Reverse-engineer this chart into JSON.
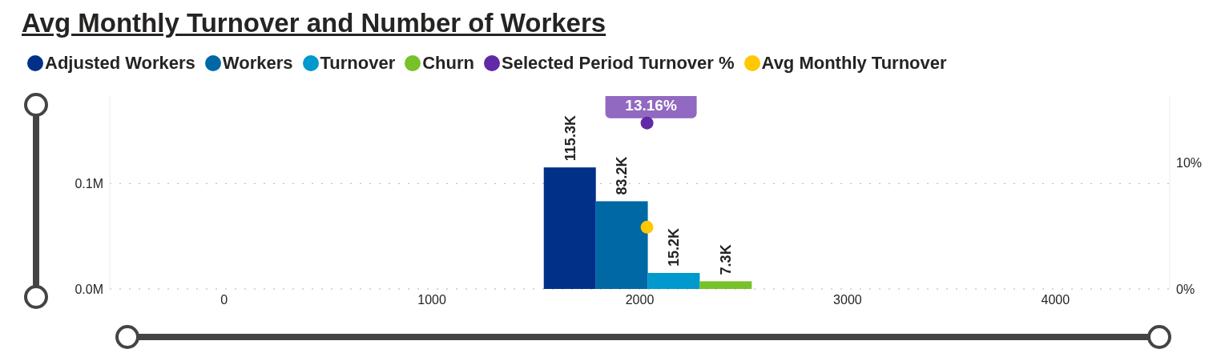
{
  "chart_data": {
    "type": "bar",
    "title": "Avg Monthly Turnover and Number of Workers",
    "series": [
      {
        "name": "Adjusted Workers",
        "color": "#003087",
        "x": [
          1662
        ],
        "values": [
          115300
        ],
        "value_labels": [
          "115.3K"
        ]
      },
      {
        "name": "Workers",
        "color": "#0068a5",
        "x": [
          1912
        ],
        "values": [
          83200
        ],
        "value_labels": [
          "83.2K"
        ]
      },
      {
        "name": "Turnover",
        "color": "#0099cd",
        "x": [
          2162
        ],
        "values": [
          15200
        ],
        "value_labels": [
          "15.2K"
        ]
      },
      {
        "name": "Churn",
        "color": "#77c12a",
        "x": [
          2412
        ],
        "values": [
          7300
        ],
        "value_labels": [
          "7.3K"
        ]
      },
      {
        "name": "Selected Period Turnover %",
        "type": "scatter",
        "axis": "y2",
        "color": "#6229a6",
        "x": [
          2035
        ],
        "values": [
          13.16
        ],
        "value_labels": [
          "13.16%"
        ]
      },
      {
        "name": "Avg Monthly Turnover",
        "type": "scatter",
        "axis": "y2",
        "color": "#ffc800",
        "x": [
          2035
        ],
        "values": [
          4.9
        ]
      }
    ],
    "xlim": [
      -550,
      4550
    ],
    "xticks": [
      0,
      1000,
      2000,
      3000,
      4000
    ],
    "ylim": [
      0,
      183000
    ],
    "yticks": [
      {
        "value": 0,
        "label": "0.0M"
      },
      {
        "value": 100000,
        "label": "0.1M"
      }
    ],
    "y2lim": [
      0,
      15.3
    ],
    "y2ticks": [
      {
        "value": 0,
        "label": "0%"
      },
      {
        "value": 10,
        "label": "10%"
      }
    ],
    "grid": "y",
    "legend": "top left",
    "marker": "circle"
  }
}
